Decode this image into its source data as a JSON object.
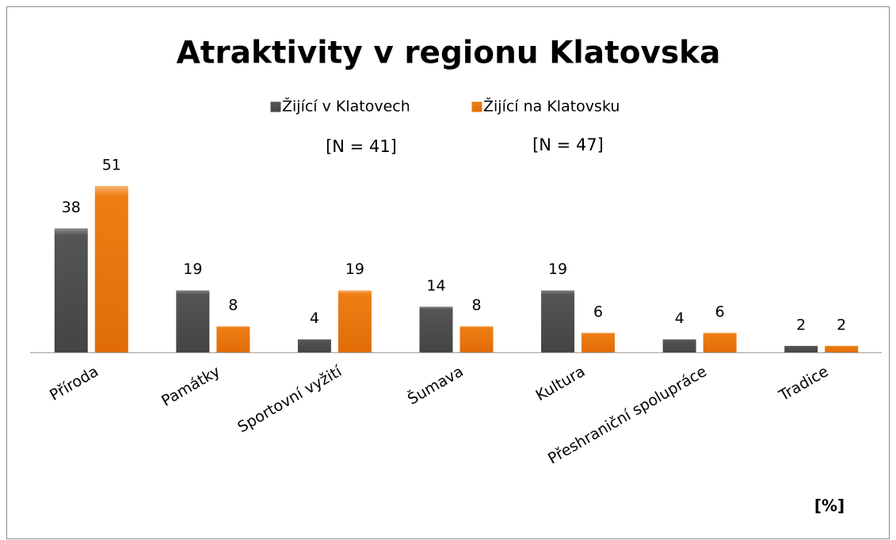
{
  "chart_data": {
    "type": "bar",
    "title": "Atraktivity v regionu Klatovska",
    "categories": [
      "Příroda",
      "Památky",
      "Sportovní vyžití",
      "Šumava",
      "Kultura",
      "Přeshraniční spolupráce",
      "Tradice"
    ],
    "series": [
      {
        "name": "Žijící v Klatovech",
        "color": "#4f4f4f",
        "values": [
          38,
          19,
          4,
          14,
          19,
          4,
          2
        ]
      },
      {
        "name": "Žijící na Klatovsku",
        "color": "#ec7a12",
        "values": [
          51,
          8,
          19,
          8,
          6,
          6,
          2
        ]
      }
    ],
    "annotations": [
      "[N = 41]",
      "[N = 47]",
      "[%]"
    ],
    "legend": "top"
  }
}
